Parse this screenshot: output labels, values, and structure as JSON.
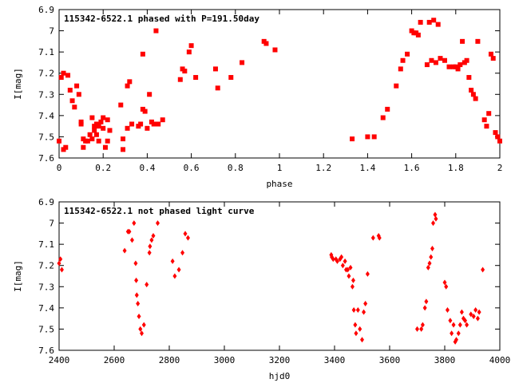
{
  "colors": {
    "points": "#ff0000",
    "axes": "#000000",
    "background": "#ffffff"
  },
  "chart_data": [
    {
      "type": "scatter",
      "title": "115342-6522.1 phased with P=191.50day",
      "xlabel": "phase",
      "ylabel": "I[mag]",
      "xlim": [
        0,
        2
      ],
      "ylim": [
        7.6,
        6.9
      ],
      "y_inverted": true,
      "grid": false,
      "marker": "square",
      "xticks": [
        "0",
        "0.2",
        "0.4",
        "0.6",
        "0.8",
        "1",
        "1.2",
        "1.4",
        "1.6",
        "1.8",
        "2"
      ],
      "yticks": [
        "6.9",
        "7",
        "7.1",
        "7.2",
        "7.3",
        "7.4",
        "7.5",
        "7.6"
      ],
      "series": [
        {
          "x": [
            0.0,
            0.01,
            0.02,
            0.02,
            0.03,
            0.04,
            0.05,
            0.06,
            0.07,
            0.08,
            0.09,
            0.1,
            0.1,
            0.11,
            0.11,
            0.12,
            0.13,
            0.14,
            0.15,
            0.15,
            0.16,
            0.16,
            0.17,
            0.17,
            0.18,
            0.18,
            0.19,
            0.2,
            0.2,
            0.21,
            0.22,
            0.22,
            0.23,
            0.28,
            0.29,
            0.29,
            0.31,
            0.31,
            0.32,
            0.33,
            0.36,
            0.37,
            0.38,
            0.38,
            0.39,
            0.4,
            0.41,
            0.42,
            0.43,
            0.44,
            0.45,
            0.47,
            0.55,
            0.56,
            0.57,
            0.59,
            0.6,
            0.62,
            0.71,
            0.72,
            0.78,
            0.83,
            0.93,
            0.94,
            0.98,
            1.33,
            1.4,
            1.43,
            1.47,
            1.49,
            1.53,
            1.55,
            1.56,
            1.58,
            1.6,
            1.61,
            1.62,
            1.63,
            1.64,
            1.67,
            1.68,
            1.69,
            1.7,
            1.71,
            1.72,
            1.73,
            1.75,
            1.77,
            1.79,
            1.8,
            1.81,
            1.82,
            1.83,
            1.84,
            1.85,
            1.86,
            1.87,
            1.88,
            1.89,
            1.9,
            1.93,
            1.94,
            1.95,
            1.96,
            1.97,
            1.98,
            1.99,
            2.0
          ],
          "y": [
            7.52,
            7.22,
            7.2,
            7.56,
            7.55,
            7.21,
            7.28,
            7.33,
            7.36,
            7.26,
            7.3,
            7.43,
            7.44,
            7.51,
            7.55,
            7.52,
            7.52,
            7.49,
            7.41,
            7.51,
            7.47,
            7.45,
            7.44,
            7.49,
            7.52,
            7.45,
            7.43,
            7.46,
            7.41,
            7.55,
            7.42,
            7.52,
            7.47,
            7.35,
            7.51,
            7.56,
            7.26,
            7.46,
            7.24,
            7.44,
            7.45,
            7.44,
            7.37,
            7.11,
            7.38,
            7.46,
            7.3,
            7.43,
            7.44,
            7.0,
            7.44,
            7.42,
            7.23,
            7.18,
            7.19,
            7.1,
            7.07,
            7.22,
            7.18,
            7.27,
            7.22,
            7.15,
            7.05,
            7.06,
            7.09,
            7.51,
            7.5,
            7.5,
            7.41,
            7.37,
            7.26,
            7.18,
            7.14,
            7.11,
            7.0,
            7.01,
            7.01,
            7.02,
            6.96,
            7.16,
            6.96,
            7.14,
            6.95,
            7.15,
            6.97,
            7.13,
            7.14,
            7.17,
            7.17,
            7.17,
            7.18,
            7.16,
            7.05,
            7.15,
            7.14,
            7.22,
            7.28,
            7.3,
            7.32,
            7.05,
            7.42,
            7.45,
            7.39,
            7.11,
            7.13,
            7.48,
            7.5,
            7.52
          ]
        }
      ]
    },
    {
      "type": "scatter",
      "title": "115342-6522.1 not phased light curve",
      "xlabel": "hjd0",
      "ylabel": "I[mag]",
      "xlim": [
        2400,
        4000
      ],
      "ylim": [
        7.6,
        6.9
      ],
      "y_inverted": true,
      "grid": false,
      "marker": "diamond",
      "xticks": [
        "2400",
        "2600",
        "2800",
        "3000",
        "3200",
        "3400",
        "3600",
        "3800",
        "4000"
      ],
      "yticks": [
        "6.9",
        "7",
        "7.1",
        "7.2",
        "7.3",
        "7.4",
        "7.5",
        "7.6"
      ],
      "series": [
        {
          "x": [
            2400,
            2405,
            2410,
            2638,
            2650,
            2655,
            2665,
            2672,
            2678,
            2680,
            2682,
            2686,
            2690,
            2695,
            2700,
            2708,
            2718,
            2728,
            2730,
            2736,
            2742,
            2758,
            2812,
            2820,
            2835,
            2848,
            2858,
            2868,
            3388,
            3390,
            3395,
            3405,
            3410,
            3420,
            3425,
            3430,
            3438,
            3442,
            3448,
            3452,
            3458,
            3465,
            3468,
            3470,
            3475,
            3478,
            3485,
            3492,
            3500,
            3506,
            3512,
            3520,
            3540,
            3560,
            3563,
            3700,
            3715,
            3720,
            3728,
            3733,
            3740,
            3745,
            3750,
            3755,
            3758,
            3765,
            3768,
            3800,
            3805,
            3810,
            3820,
            3825,
            3832,
            3838,
            3842,
            3850,
            3856,
            3862,
            3868,
            3874,
            3880,
            3895,
            3905,
            3912,
            3920,
            3925,
            3938
          ],
          "y": [
            7.19,
            7.17,
            7.22,
            7.13,
            7.04,
            7.04,
            7.08,
            7.0,
            7.19,
            7.27,
            7.34,
            7.38,
            7.44,
            7.5,
            7.52,
            7.48,
            7.29,
            7.14,
            7.11,
            7.08,
            7.06,
            7.0,
            7.18,
            7.25,
            7.22,
            7.14,
            7.05,
            7.07,
            7.15,
            7.16,
            7.17,
            7.17,
            7.18,
            7.17,
            7.16,
            7.2,
            7.18,
            7.22,
            7.22,
            7.25,
            7.21,
            7.3,
            7.27,
            7.41,
            7.48,
            7.52,
            7.41,
            7.5,
            7.55,
            7.42,
            7.38,
            7.24,
            7.07,
            7.06,
            7.07,
            7.5,
            7.5,
            7.48,
            7.4,
            7.37,
            7.21,
            7.19,
            7.16,
            7.12,
            7.0,
            6.96,
            6.98,
            7.28,
            7.3,
            7.41,
            7.46,
            7.52,
            7.48,
            7.56,
            7.55,
            7.52,
            7.48,
            7.42,
            7.45,
            7.46,
            7.48,
            7.43,
            7.44,
            7.41,
            7.45,
            7.42,
            7.22
          ]
        }
      ]
    }
  ]
}
